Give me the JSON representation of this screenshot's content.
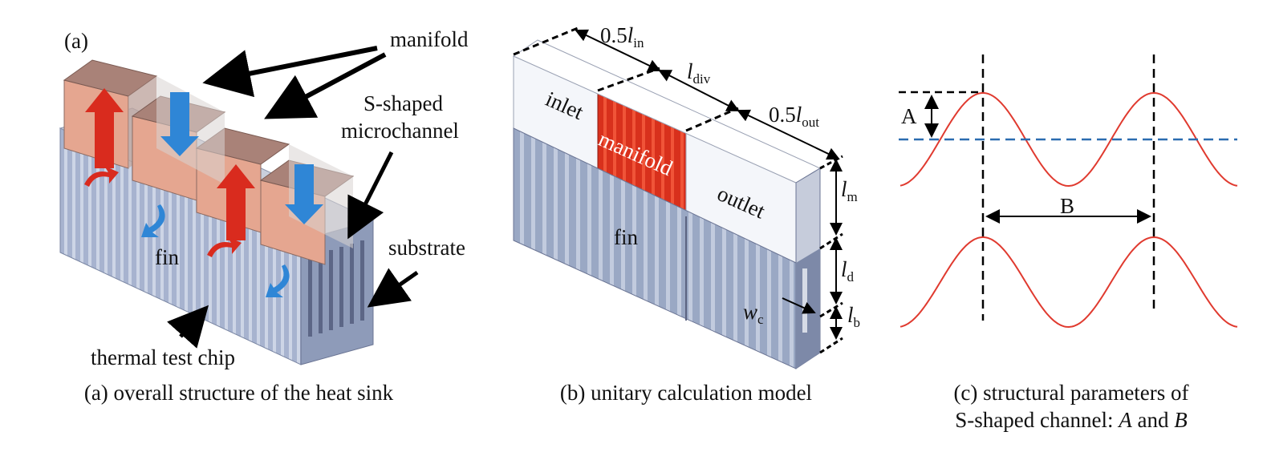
{
  "panel_a": {
    "tag": "(a)",
    "labels": {
      "manifold": "manifold",
      "s_shaped_1": "S-shaped",
      "s_shaped_2": "microchannel",
      "substrate": "substrate",
      "fin": "fin",
      "thermal_chip": "thermal test chip"
    },
    "caption": "(a) overall structure of the heat sink"
  },
  "panel_b": {
    "labels": {
      "half_l_in": "0.5",
      "l_sym": "l",
      "in_sub": "in",
      "div_sub": "div",
      "out_sub": "out",
      "m_sub": "m",
      "d_sub": "d",
      "b_sub": "b",
      "w_sym": "w",
      "c_sub": "c",
      "inlet": "inlet",
      "manifold": "manifold",
      "outlet": "outlet",
      "fin": "fin"
    },
    "caption": "(b) unitary calculation model"
  },
  "panel_c": {
    "labels": {
      "A": "A",
      "B": "B"
    },
    "caption_line1": "(c) structural parameters of",
    "caption_line2_prefix": "S-shaped channel: ",
    "caption_A": "A",
    "caption_and": " and ",
    "caption_B": "B"
  },
  "colors": {
    "sine": "#e03a2f",
    "centerline": "#2b6cb0",
    "manifold_red": "#d8301c",
    "fin_blue": "#9aa8c4",
    "manifold_brown": "#8c6b62",
    "arrow_red": "#d92b1e",
    "arrow_blue": "#2f86d6"
  }
}
